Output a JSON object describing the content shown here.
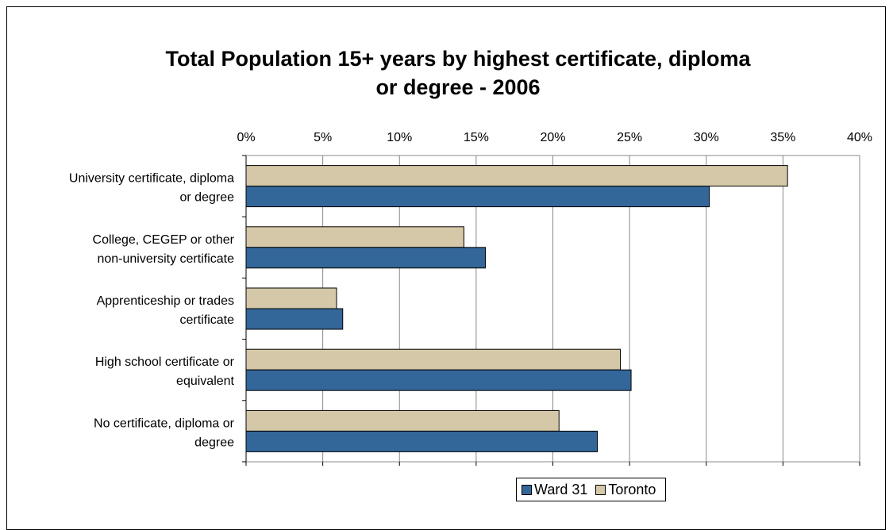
{
  "chart_data": {
    "type": "bar",
    "orientation": "horizontal",
    "title": "Total Population 15+ years by highest certificate, diploma or degree - 2006",
    "title_lines": [
      "Total Population 15+ years by highest certificate, diploma",
      "or degree - 2006"
    ],
    "categories": [
      "University certificate, diploma or degree",
      "College, CEGEP or other non-university certificate",
      "Apprenticeship or trades certificate",
      "High school certificate or equivalent",
      "No certificate, diploma or degree"
    ],
    "category_lines": [
      [
        "University certificate, diploma",
        "or degree"
      ],
      [
        "College, CEGEP or other",
        "non-university certificate"
      ],
      [
        "Apprenticeship or trades",
        "certificate"
      ],
      [
        "High school certificate or",
        "equivalent"
      ],
      [
        "No certificate, diploma or",
        "degree"
      ]
    ],
    "series": [
      {
        "name": "Toronto",
        "color": "#d4c8a8",
        "values": [
          35.3,
          14.2,
          5.9,
          24.4,
          20.4
        ]
      },
      {
        "name": "Ward 31",
        "color": "#336699",
        "values": [
          30.2,
          15.6,
          6.3,
          25.1,
          22.9
        ]
      }
    ],
    "xlim": [
      0,
      40
    ],
    "xticks": [
      "0%",
      "5%",
      "10%",
      "15%",
      "20%",
      "25%",
      "30%",
      "35%",
      "40%"
    ],
    "grid": true,
    "legend_position": "bottom",
    "legend_order": [
      "Ward 31",
      "Toronto"
    ]
  }
}
